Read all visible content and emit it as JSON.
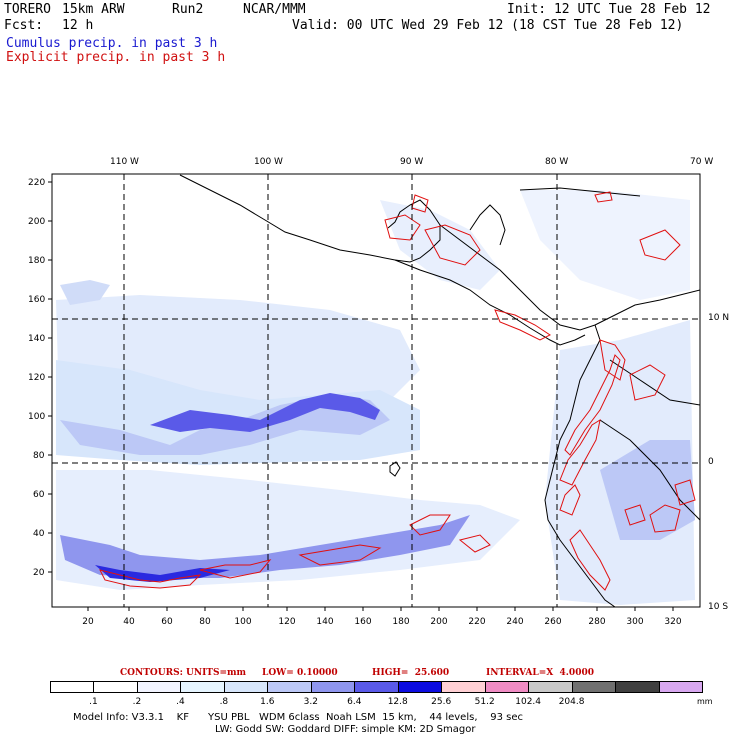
{
  "header": {
    "model": "TORERO",
    "resolution": "15km ARW",
    "run": "Run2",
    "org": "NCAR/MMM",
    "init": "Init: 12 UTC Tue 28 Feb 12",
    "fcst_label": "Fcst:",
    "fcst_value": "12 h",
    "valid": "Valid: 00 UTC Wed 29 Feb 12 (18 CST Tue 28 Feb 12)",
    "field1": "Cumulus precip. in past 3 h",
    "field2": "Explicit precip. in past 3 h"
  },
  "map": {
    "top_lon_labels": [
      "110 W",
      "100 W",
      "90 W",
      "80 W",
      "70 W"
    ],
    "right_lat_labels": [
      "10 N",
      "0",
      "10 S"
    ],
    "y_ticks": [
      "220",
      "200",
      "180",
      "160",
      "140",
      "120",
      "100",
      "80",
      "60",
      "40",
      "20"
    ],
    "x_ticks": [
      "20",
      "40",
      "60",
      "80",
      "100",
      "120",
      "140",
      "160",
      "180",
      "200",
      "220",
      "240",
      "260",
      "280",
      "300",
      "320"
    ],
    "colors": {
      "cumulus": "#2a2ae0",
      "explicit": "#e01010",
      "land": "#000000",
      "grid": "#000000"
    }
  },
  "contour_info": {
    "contours": "CONTOURS:",
    "units": "UNITS=mm",
    "low": "LOW= 0.10000",
    "high": "HIGH=  25.600",
    "interval": "INTERVAL=X  4.0000"
  },
  "colorbar": {
    "levels": [
      ".1",
      ".2",
      ".4",
      ".8",
      "1.6",
      "3.2",
      "6.4",
      "12.8",
      "25.6",
      "51.2",
      "102.4",
      "204.8"
    ],
    "units": "mm",
    "colors": [
      "#ffffff",
      "#ffffff",
      "#f2f4ff",
      "#e6f5ff",
      "#d7e6fb",
      "#bcc8f6",
      "#8f96ee",
      "#5a5ae8",
      "#0c0ce0",
      "#ffd0d4",
      "#f08cc4",
      "#c8c8c8",
      "#707070",
      "#404040",
      "#d8a8f0"
    ]
  },
  "footer": {
    "line1": "Model Info: V3.3.1    KF      YSU PBL   WDM 6class  Noah LSM  15 km,    44 levels,    93 sec",
    "line2": "LW: Godd SW: Goddard DIFF: simple KM: 2D Smagor"
  }
}
